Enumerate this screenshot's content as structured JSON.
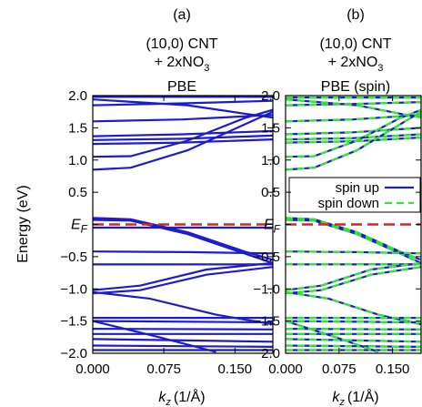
{
  "chart_data": [
    {
      "type": "line",
      "panel_label": "(a)",
      "title_line1": "(10,0) CNT",
      "title_line2_main": "+ 2xNO",
      "title_line2_sub": "3",
      "title_line3": "PBE",
      "xlabel_main": "k",
      "xlabel_sub": "z",
      "xlabel_unit": "(1/Å)",
      "ylabel": "Energy (eV)",
      "xlim": [
        0.0,
        0.19
      ],
      "ylim": [
        -2.0,
        2.0
      ],
      "x_ticks": [
        "0.000",
        "0.075",
        "0.150"
      ],
      "y_ticks": [
        "2.0",
        "1.5",
        "1.0",
        "0.5",
        "E_F",
        "−0.5",
        "−1.0",
        "−1.5",
        "−2.0"
      ],
      "fermi_level": 0.0,
      "series": [
        {
          "values": [
            [
              0,
              1.98
            ],
            [
              0.19,
              1.98
            ]
          ]
        },
        {
          "values": [
            [
              0,
              1.85
            ],
            [
              0.095,
              1.88
            ],
            [
              0.19,
              1.92
            ]
          ]
        },
        {
          "values": [
            [
              0,
              1.6
            ],
            [
              0.095,
              1.63
            ],
            [
              0.19,
              1.7
            ]
          ]
        },
        {
          "values": [
            [
              0,
              1.37
            ],
            [
              0.095,
              1.4
            ],
            [
              0.19,
              1.45
            ]
          ]
        },
        {
          "values": [
            [
              0,
              1.31
            ],
            [
              0.095,
              1.33
            ],
            [
              0.19,
              1.38
            ]
          ]
        },
        {
          "values": [
            [
              0,
              1.25
            ],
            [
              0.095,
              1.27
            ],
            [
              0.19,
              1.32
            ]
          ]
        },
        {
          "values": [
            [
              0,
              1.05
            ],
            [
              0.04,
              1.06
            ],
            [
              0.1,
              1.3
            ],
            [
              0.16,
              1.65
            ],
            [
              0.19,
              1.78
            ]
          ]
        },
        {
          "values": [
            [
              0,
              0.85
            ],
            [
              0.04,
              0.88
            ],
            [
              0.1,
              1.15
            ],
            [
              0.16,
              1.55
            ],
            [
              0.19,
              1.75
            ]
          ]
        },
        {
          "values": [
            [
              0,
              1.94
            ],
            [
              0.1,
              1.85
            ],
            [
              0.16,
              1.72
            ],
            [
              0.19,
              1.66
            ]
          ]
        },
        {
          "values": [
            [
              0,
              -0.05
            ],
            [
              0.19,
              -0.05
            ]
          ]
        },
        {
          "values": [
            [
              0,
              0.07
            ],
            [
              0.04,
              0.06
            ],
            [
              0.1,
              -0.15
            ],
            [
              0.16,
              -0.45
            ],
            [
              0.19,
              -0.6
            ]
          ]
        },
        {
          "values": [
            [
              0,
              0.1
            ],
            [
              0.04,
              0.08
            ],
            [
              0.1,
              -0.12
            ],
            [
              0.16,
              -0.42
            ],
            [
              0.19,
              -0.55
            ]
          ]
        },
        {
          "values": [
            [
              0,
              -0.42
            ],
            [
              0.1,
              -0.43
            ],
            [
              0.19,
              -0.45
            ]
          ]
        },
        {
          "values": [
            [
              0,
              -0.62
            ],
            [
              0.1,
              -0.62
            ],
            [
              0.19,
              -0.62
            ]
          ]
        },
        {
          "values": [
            [
              0,
              -1.02
            ],
            [
              0.05,
              -0.95
            ],
            [
              0.12,
              -0.7
            ],
            [
              0.19,
              -0.6
            ]
          ]
        },
        {
          "values": [
            [
              0,
              -1.07
            ],
            [
              0.05,
              -1.02
            ],
            [
              0.12,
              -0.78
            ],
            [
              0.19,
              -0.66
            ]
          ]
        },
        {
          "values": [
            [
              0,
              -1.05
            ],
            [
              0.06,
              -1.15
            ],
            [
              0.13,
              -1.4
            ],
            [
              0.19,
              -1.55
            ]
          ]
        },
        {
          "values": [
            [
              0,
              -1.45
            ],
            [
              0.19,
              -1.45
            ]
          ]
        },
        {
          "values": [
            [
              0,
              -1.5
            ],
            [
              0.19,
              -1.52
            ]
          ]
        },
        {
          "values": [
            [
              0,
              -1.62
            ],
            [
              0.19,
              -1.63
            ]
          ]
        },
        {
          "values": [
            [
              0,
              -1.7
            ],
            [
              0.19,
              -1.7
            ]
          ]
        },
        {
          "values": [
            [
              0,
              -1.78
            ],
            [
              0.1,
              -1.8
            ],
            [
              0.19,
              -1.82
            ]
          ]
        },
        {
          "values": [
            [
              0,
              -1.88
            ],
            [
              0.19,
              -1.9
            ]
          ]
        },
        {
          "values": [
            [
              0,
              -1.95
            ],
            [
              0.19,
              -1.95
            ]
          ]
        },
        {
          "values": [
            [
              0,
              -1.5
            ],
            [
              0.07,
              -1.75
            ],
            [
              0.13,
              -1.98
            ]
          ]
        }
      ]
    },
    {
      "type": "line",
      "panel_label": "(b)",
      "title_line1": "(10,0) CNT",
      "title_line2_main": "+ 2xNO",
      "title_line2_sub": "3",
      "title_line3": "PBE (spin)",
      "xlabel_main": "k",
      "xlabel_sub": "z",
      "xlabel_unit": "(1/Å)",
      "xlim": [
        0.0,
        0.19
      ],
      "ylim": [
        -2.0,
        2.0
      ],
      "x_ticks": [
        "0.000",
        "0.075",
        "0.150"
      ],
      "y_ticks": [
        "2.0",
        "1.5",
        "1.0",
        "0.5",
        "E_F",
        "−0.5",
        "−1.0",
        "−1.5",
        "−2.0"
      ],
      "fermi_level": 0.0,
      "legend": {
        "position": "right",
        "entries": [
          "spin up",
          "spin down"
        ]
      },
      "series": [
        {
          "name": "spin up",
          "color": "#1c1ccc",
          "dash": "none"
        },
        {
          "name": "spin down",
          "color": "#33e633",
          "dash": "8,5"
        }
      ],
      "bands": [
        [
          [
            0,
            1.97
          ],
          [
            0.19,
            1.97
          ]
        ],
        [
          [
            0,
            1.85
          ],
          [
            0.095,
            1.87
          ],
          [
            0.19,
            1.9
          ]
        ],
        [
          [
            0,
            1.6
          ],
          [
            0.095,
            1.63
          ],
          [
            0.19,
            1.7
          ]
        ],
        [
          [
            0,
            1.4
          ],
          [
            0.095,
            1.43
          ],
          [
            0.19,
            1.5
          ]
        ],
        [
          [
            0,
            1.32
          ],
          [
            0.095,
            1.34
          ],
          [
            0.19,
            1.4
          ]
        ],
        [
          [
            0,
            1.27
          ],
          [
            0.095,
            1.29
          ],
          [
            0.19,
            1.35
          ]
        ],
        [
          [
            0,
            1.05
          ],
          [
            0.04,
            1.06
          ],
          [
            0.1,
            1.3
          ],
          [
            0.16,
            1.65
          ],
          [
            0.19,
            1.78
          ]
        ],
        [
          [
            0,
            0.85
          ],
          [
            0.04,
            0.88
          ],
          [
            0.1,
            1.15
          ],
          [
            0.16,
            1.55
          ],
          [
            0.19,
            1.75
          ]
        ],
        [
          [
            0,
            1.94
          ],
          [
            0.1,
            1.85
          ],
          [
            0.16,
            1.72
          ],
          [
            0.19,
            1.66
          ]
        ],
        [
          [
            0,
            0.07
          ],
          [
            0.04,
            0.06
          ],
          [
            0.1,
            -0.15
          ],
          [
            0.16,
            -0.45
          ],
          [
            0.19,
            -0.6
          ]
        ],
        [
          [
            0,
            0.1
          ],
          [
            0.04,
            0.08
          ],
          [
            0.1,
            -0.12
          ],
          [
            0.16,
            -0.42
          ],
          [
            0.19,
            -0.55
          ]
        ],
        [
          [
            0,
            -0.42
          ],
          [
            0.1,
            -0.43
          ],
          [
            0.19,
            -0.45
          ]
        ],
        [
          [
            0,
            -0.62
          ],
          [
            0.1,
            -0.62
          ],
          [
            0.19,
            -0.62
          ]
        ],
        [
          [
            0,
            -1.02
          ],
          [
            0.05,
            -0.95
          ],
          [
            0.12,
            -0.7
          ],
          [
            0.19,
            -0.6
          ]
        ],
        [
          [
            0,
            -1.07
          ],
          [
            0.05,
            -1.02
          ],
          [
            0.12,
            -0.78
          ],
          [
            0.19,
            -0.66
          ]
        ],
        [
          [
            0,
            -1.05
          ],
          [
            0.06,
            -1.15
          ],
          [
            0.13,
            -1.4
          ],
          [
            0.19,
            -1.55
          ]
        ],
        [
          [
            0,
            -1.45
          ],
          [
            0.19,
            -1.45
          ]
        ],
        [
          [
            0,
            -1.5
          ],
          [
            0.19,
            -1.52
          ]
        ],
        [
          [
            0,
            -1.62
          ],
          [
            0.19,
            -1.63
          ]
        ],
        [
          [
            0,
            -1.7
          ],
          [
            0.19,
            -1.7
          ]
        ],
        [
          [
            0,
            -1.78
          ],
          [
            0.1,
            -1.8
          ],
          [
            0.19,
            -1.82
          ]
        ],
        [
          [
            0,
            -1.88
          ],
          [
            0.19,
            -1.9
          ]
        ],
        [
          [
            0,
            -1.95
          ],
          [
            0.19,
            -1.95
          ]
        ],
        [
          [
            0,
            -1.5
          ],
          [
            0.07,
            -1.75
          ],
          [
            0.13,
            -1.98
          ]
        ]
      ]
    }
  ],
  "colors": {
    "band": "#1c1ccc",
    "spin_down": "#33e633",
    "fermi": "#dd2222"
  }
}
